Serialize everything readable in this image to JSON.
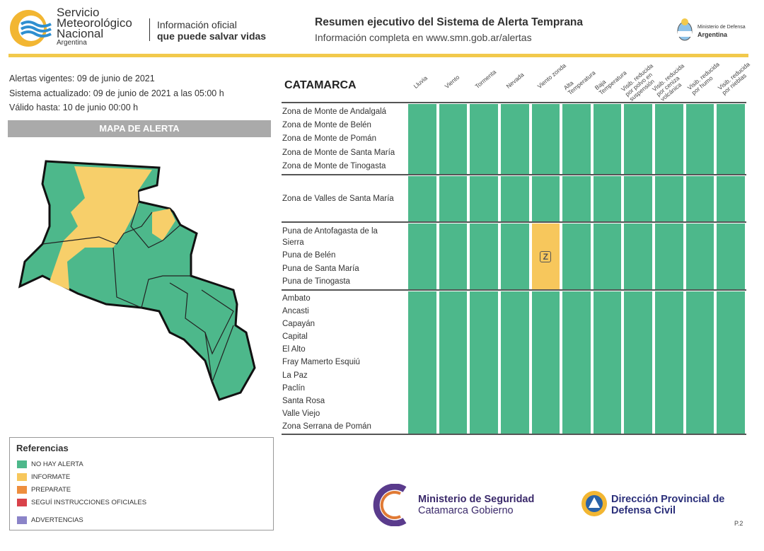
{
  "header": {
    "org": [
      "Servicio",
      "Meteorológico",
      "Nacional"
    ],
    "org_country": "Argentina",
    "tagline": [
      "Información oficial",
      "que puede salvar vidas"
    ],
    "title": "Resumen ejecutivo del Sistema de Alerta Temprana",
    "subtitle": "Información completa en www.smn.gob.ar/alertas",
    "ministry": [
      "Ministerio de Defensa",
      "Argentina"
    ]
  },
  "info": [
    "Alertas vigentes: 09 de junio de 2021",
    "Sistema actualizado: 09 de junio de 2021 a las 05:00 h",
    "Válido hasta: 10 de junio 00:00 h"
  ],
  "map_title": "MAPA DE ALERTA",
  "table": {
    "province": "CATAMARCA",
    "columns": [
      "Lluvia",
      "Viento",
      "Tormenta",
      "Nevada",
      "Viento zonda",
      "Alta Temperatura",
      "Baja Temperatura",
      "Visib. reducida por polvo en suspensión",
      "Visib. reducida por ceniza volcánica",
      "Visib. reducida por humo",
      "Visib. reducida por nieblas"
    ],
    "groups": [
      {
        "zones": [
          "Zona de Monte de Andalgalá",
          "Zona de Monte de Belén",
          "Zona de Monte de Pomán",
          "Zona de Monte de Santa María",
          "Zona de Monte de Tinogasta"
        ],
        "cells": [
          {
            "color": "#4db88b"
          },
          {
            "color": "#4db88b"
          },
          {
            "color": "#4db88b"
          },
          {
            "color": "#4db88b"
          },
          {
            "color": "#4db88b"
          },
          {
            "color": "#4db88b"
          },
          {
            "color": "#4db88b"
          },
          {
            "color": "#4db88b"
          },
          {
            "color": "#4db88b"
          },
          {
            "color": "#4db88b"
          },
          {
            "color": "#4db88b"
          }
        ]
      },
      {
        "zones": [
          "Zona de Valles de Santa María"
        ],
        "cells": [
          {
            "color": "#4db88b"
          },
          {
            "color": "#4db88b"
          },
          {
            "color": "#4db88b"
          },
          {
            "color": "#4db88b"
          },
          {
            "color": "#4db88b"
          },
          {
            "color": "#4db88b"
          },
          {
            "color": "#4db88b"
          },
          {
            "color": "#4db88b"
          },
          {
            "color": "#4db88b"
          },
          {
            "color": "#4db88b"
          },
          {
            "color": "#4db88b"
          }
        ]
      },
      {
        "zones": [
          "Puna de Antofagasta de la Sierra",
          "Puna de Belén",
          "Puna de Santa María",
          "Puna de Tinogasta"
        ],
        "cells": [
          {
            "color": "#4db88b"
          },
          {
            "color": "#4db88b"
          },
          {
            "color": "#4db88b"
          },
          {
            "color": "#4db88b"
          },
          {
            "color": "#f7c75c",
            "label": "Z"
          },
          {
            "color": "#4db88b"
          },
          {
            "color": "#4db88b"
          },
          {
            "color": "#4db88b"
          },
          {
            "color": "#4db88b"
          },
          {
            "color": "#4db88b"
          },
          {
            "color": "#4db88b"
          }
        ]
      },
      {
        "zones": [
          "Ambato",
          "Ancasti",
          "Capayán",
          "Capital",
          "El Alto",
          "Fray Mamerto Esquiú",
          "La Paz",
          "Paclín",
          "Santa Rosa",
          "Valle Viejo",
          "Zona Serrana de Pomán"
        ],
        "cells": [
          {
            "color": "#4db88b"
          },
          {
            "color": "#4db88b"
          },
          {
            "color": "#4db88b"
          },
          {
            "color": "#4db88b"
          },
          {
            "color": "#4db88b"
          },
          {
            "color": "#4db88b"
          },
          {
            "color": "#4db88b"
          },
          {
            "color": "#4db88b"
          },
          {
            "color": "#4db88b"
          },
          {
            "color": "#4db88b"
          },
          {
            "color": "#4db88b"
          }
        ]
      }
    ]
  },
  "references": {
    "title": "Referencias",
    "items": [
      {
        "label": "NO HAY ALERTA",
        "color": "#4db88b"
      },
      {
        "label": "INFORMATE",
        "color": "#f7c75c"
      },
      {
        "label": "PREPARATE",
        "color": "#ee8e3e"
      },
      {
        "label": "SEGUÍ INSTRUCCIONES OFICIALES",
        "color": "#d9424a"
      },
      {
        "label": "ADVERTENCIAS",
        "color": "#8b84c8"
      }
    ]
  },
  "footer": {
    "seguridad": [
      "Ministerio de Seguridad",
      "Catamarca Gobierno"
    ],
    "defensa": [
      "Dirección Provincial de",
      "Defensa Civil"
    ],
    "page": "P.2"
  }
}
